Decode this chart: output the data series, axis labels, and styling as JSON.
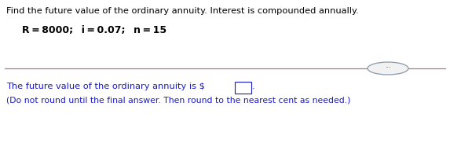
{
  "title_line": "Find the future value of the ordinary annuity. Interest is compounded annually.",
  "params_line1": "R = 8000;  i = 0.07;  n = 15",
  "answer_line1": "The future value of the ordinary annuity is $",
  "answer_line2": "(Do not round until the final answer. Then round to the nearest cent as needed.)",
  "bg_color": "#ffffff",
  "title_color": "#000000",
  "params_color": "#000000",
  "answer_color": "#1a1acd",
  "divider_color": "#b07878",
  "ellipsis_bg": "#f2f2f2",
  "ellipsis_border": "#8899aa"
}
